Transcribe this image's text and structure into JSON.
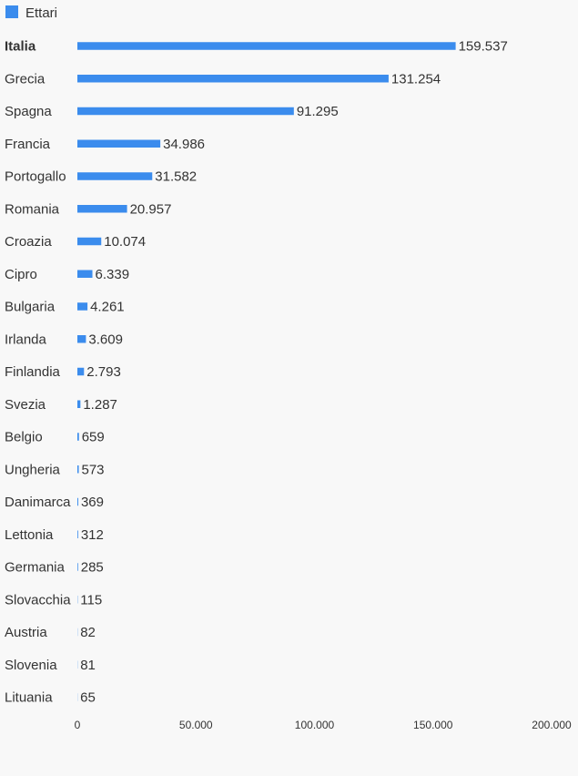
{
  "chart_data": {
    "type": "bar",
    "orientation": "horizontal",
    "legend": {
      "position": "top-left",
      "entries": [
        {
          "label": "Ettari",
          "color": "#3b8ced"
        }
      ]
    },
    "series": [
      {
        "name": "Ettari",
        "color": "#3b8ced",
        "values": [
          159537,
          131254,
          91295,
          34986,
          31582,
          20957,
          10074,
          6339,
          4261,
          3609,
          2793,
          1287,
          659,
          573,
          369,
          312,
          285,
          115,
          82,
          81,
          65
        ],
        "value_labels": [
          "159.537",
          "131.254",
          "91.295",
          "34.986",
          "31.582",
          "20.957",
          "10.074",
          "6.339",
          "4.261",
          "3.609",
          "2.793",
          "1.287",
          "659",
          "573",
          "369",
          "312",
          "285",
          "115",
          "82",
          "81",
          "65"
        ]
      }
    ],
    "categories": [
      "Italia",
      "Grecia",
      "Spagna",
      "Francia",
      "Portogallo",
      "Romania",
      "Croazia",
      "Cipro",
      "Bulgaria",
      "Irlanda",
      "Finlandia",
      "Svezia",
      "Belgio",
      "Ungheria",
      "Danimarca",
      "Lettonia",
      "Germania",
      "Slovacchia",
      "Austria",
      "Slovenia",
      "Lituania"
    ],
    "highlighted_category": "Italia",
    "xlim": [
      0,
      200000
    ],
    "x_ticks": [
      0,
      50000,
      100000,
      150000,
      200000
    ],
    "x_tick_labels": [
      "0",
      "50.000",
      "100.000",
      "150.000",
      "200.000"
    ],
    "grid": false,
    "title": "",
    "xlabel": "",
    "ylabel": ""
  }
}
